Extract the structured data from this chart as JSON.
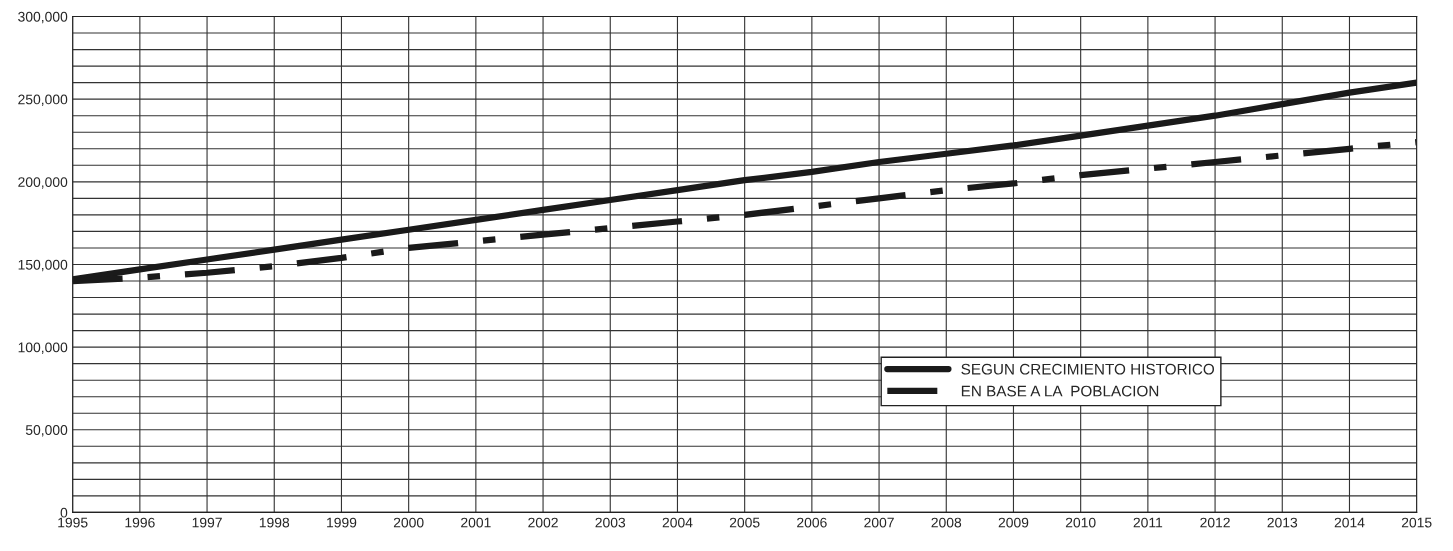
{
  "chart_data": {
    "type": "line",
    "x": [
      1995,
      1996,
      1997,
      1998,
      1999,
      2000,
      2001,
      2002,
      2003,
      2004,
      2005,
      2006,
      2007,
      2008,
      2009,
      2010,
      2011,
      2012,
      2013,
      2014,
      2015
    ],
    "series": [
      {
        "name": "SEGUN CRECIMIENTO HISTORICO",
        "color": "#1a1a1a",
        "line_style": "solid",
        "values": [
          141000,
          147000,
          153000,
          159000,
          165000,
          171000,
          177000,
          183000,
          189000,
          195000,
          201000,
          206000,
          212000,
          217000,
          222000,
          228000,
          234000,
          240000,
          247000,
          254000,
          260000
        ]
      },
      {
        "name": "EN BASE A LA  POBLACION",
        "color": "#1a1a1a",
        "line_style": "dashed",
        "values": [
          140000,
          142000,
          145000,
          149000,
          154000,
          160000,
          164000,
          168000,
          172000,
          176000,
          180000,
          185000,
          190000,
          195000,
          199000,
          204000,
          208000,
          212000,
          216000,
          220000,
          224000
        ]
      }
    ],
    "xlim": [
      1995,
      2015
    ],
    "xticks": [
      1995,
      1996,
      1997,
      1998,
      1999,
      2000,
      2001,
      2002,
      2003,
      2004,
      2005,
      2006,
      2007,
      2008,
      2009,
      2010,
      2011,
      2012,
      2013,
      2014,
      2015
    ],
    "ylim": [
      0,
      300000
    ],
    "yticks": [
      {
        "value": 0,
        "label": "0"
      },
      {
        "value": 10000,
        "label": null
      },
      {
        "value": 20000,
        "label": null
      },
      {
        "value": 30000,
        "label": null
      },
      {
        "value": 40000,
        "label": null
      },
      {
        "value": 50000,
        "label": "50,000"
      },
      {
        "value": 60000,
        "label": null
      },
      {
        "value": 70000,
        "label": null
      },
      {
        "value": 80000,
        "label": null
      },
      {
        "value": 90000,
        "label": null
      },
      {
        "value": 100000,
        "label": "100,000"
      },
      {
        "value": 110000,
        "label": null
      },
      {
        "value": 120000,
        "label": null
      },
      {
        "value": 130000,
        "label": null
      },
      {
        "value": 140000,
        "label": null
      },
      {
        "value": 150000,
        "label": "150,000"
      },
      {
        "value": 160000,
        "label": null
      },
      {
        "value": 170000,
        "label": null
      },
      {
        "value": 180000,
        "label": null
      },
      {
        "value": 190000,
        "label": null
      },
      {
        "value": 200000,
        "label": "200,000"
      },
      {
        "value": 210000,
        "label": null
      },
      {
        "value": 220000,
        "label": null
      },
      {
        "value": 230000,
        "label": null
      },
      {
        "value": 240000,
        "label": null
      },
      {
        "value": 250000,
        "label": "250,000"
      },
      {
        "value": 260000,
        "label": null
      },
      {
        "value": 270000,
        "label": null
      },
      {
        "value": 280000,
        "label": null
      },
      {
        "value": 290000,
        "label": null
      },
      {
        "value": 300000,
        "label": "300,000"
      }
    ],
    "grid": true,
    "legend": "bottom right"
  }
}
